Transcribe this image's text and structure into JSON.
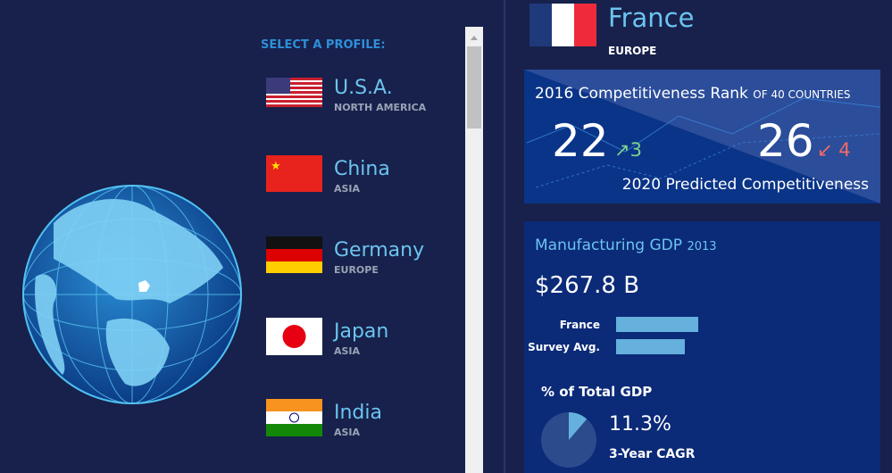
{
  "profiles": {
    "heading": "SELECT A PROFILE:",
    "items": [
      {
        "name": "U.S.A.",
        "region": "NORTH AMERICA"
      },
      {
        "name": "China",
        "region": "ASIA"
      },
      {
        "name": "Germany",
        "region": "EUROPE"
      },
      {
        "name": "Japan",
        "region": "ASIA"
      },
      {
        "name": "India",
        "region": "ASIA"
      }
    ]
  },
  "country": {
    "name": "France",
    "region": "EUROPE"
  },
  "rank": {
    "title": "2016 Competitiveness Rank",
    "subtitle": "OF 40 COUNTRIES",
    "rank_2016": 22,
    "change_2016": 3,
    "rank_2020": 26,
    "change_2020": 4,
    "predicted_label": "2020 Predicted Competitiveness"
  },
  "gdp": {
    "title": "Manufacturing GDP",
    "year": 2013,
    "value": "$267.8 B",
    "bars": [
      {
        "label": "France",
        "value": 267.8
      },
      {
        "label": "Survey Avg.",
        "value": 224
      }
    ],
    "share_title": "% of Total GDP",
    "share": 11.3,
    "value_labels": {
      "share": "11.3%"
    },
    "cagr_label": "3-Year CAGR"
  }
}
